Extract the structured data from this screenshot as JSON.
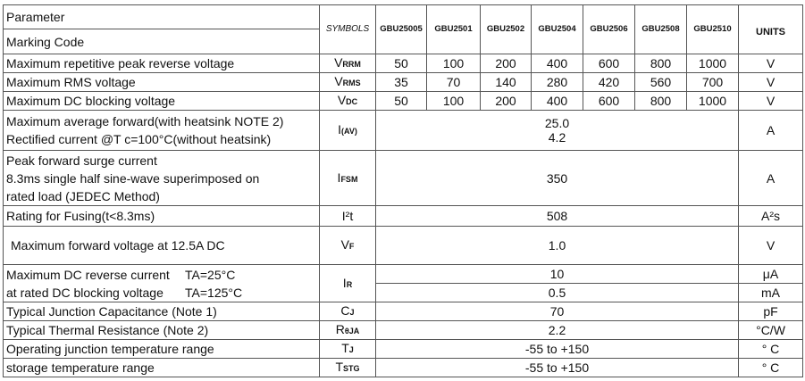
{
  "header": {
    "parameter": "Parameter",
    "marking_code": "Marking Code",
    "symbols": "SYMBOLS",
    "parts": [
      "GBU25005",
      "GBU2501",
      "GBU2502",
      "GBU2504",
      "GBU2506",
      "GBU2508",
      "GBU2510"
    ],
    "units": "UNITS"
  },
  "rows": [
    {
      "param": "Maximum repetitive peak reverse voltage",
      "sym": "V",
      "sub": "RRM",
      "values": [
        "50",
        "100",
        "200",
        "400",
        "600",
        "800",
        "1000"
      ],
      "unit": "V"
    },
    {
      "param": "Maximum RMS voltage",
      "sym": "V",
      "sub": "RMS",
      "values": [
        "35",
        "70",
        "140",
        "280",
        "420",
        "560",
        "700"
      ],
      "unit": "V"
    },
    {
      "param": "Maximum DC blocking voltage",
      "sym": "V",
      "sub": "DC",
      "values": [
        "50",
        "100",
        "200",
        "400",
        "600",
        "800",
        "1000"
      ],
      "unit": "V"
    }
  ],
  "avg_forward": {
    "line1": "Maximum average forward(with heatsink NOTE 2)",
    "line2": "Rectified current    @T c=100°C(without heatsink)",
    "sym": "I",
    "sub": "(AV)",
    "value1": "25.0",
    "value2": "4.2",
    "unit": "A"
  },
  "surge": {
    "line1": "Peak forward surge current",
    "line2": "8.3ms single half sine-wave superimposed on",
    "line3": "rated load (JEDEC Method)",
    "sym": "I",
    "sub": "FSM",
    "value": "350",
    "unit": "A"
  },
  "fusing": {
    "param": "Rating for Fusing(t<8.3ms)",
    "sym": "I²t",
    "value": "508",
    "unit": "A²s"
  },
  "vf": {
    "param": "Maximum  forward voltage at 12.5A DC",
    "sym": "V",
    "sub": "F",
    "value": "1.0",
    "unit": "V"
  },
  "ir": {
    "line1": "Maximum DC reverse current",
    "cond1": "TA=25°C",
    "line2": "at rated DC blocking voltage",
    "cond2": "TA=125°C",
    "sym": "I",
    "sub": "R",
    "value1": "10",
    "unit1": "μA",
    "value2": "0.5",
    "unit2": "mA"
  },
  "tail": [
    {
      "param": "Typical Junction Capacitance (Note 1)",
      "sym": "C",
      "sub": "J",
      "value": "70",
      "unit": "pF"
    },
    {
      "param": "Typical Thermal Resistance (Note 2)",
      "sym": "R",
      "sub": "θJA",
      "value": "2.2",
      "unit": "°C/W"
    },
    {
      "param": "Operating junction temperature range",
      "sym": "T",
      "sub": "J",
      "value": "-55 to +150",
      "unit": "° C"
    },
    {
      "param": "storage temperature range",
      "sym": "T",
      "sub": "STG",
      "value": "-55 to +150",
      "unit": "° C"
    }
  ]
}
